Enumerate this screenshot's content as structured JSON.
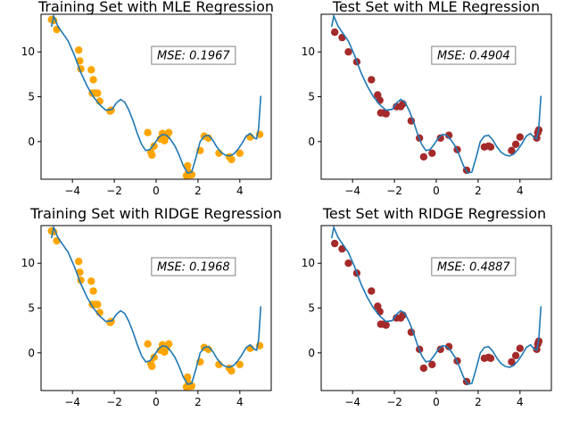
{
  "colors": {
    "background": "#ffffff",
    "curve": "#1f77b4",
    "train_points": "#ffa500",
    "test_points": "#a52a2a",
    "mse_box_border": "#808080"
  },
  "chart_data": [
    {
      "type": "scatter",
      "title": "Training Set with MLE Regression",
      "annotation": "MSE: 0.1967",
      "xlim": [
        -5.5,
        5.5
      ],
      "ylim": [
        -4.2,
        14.2
      ],
      "xticks": [
        -4,
        -2,
        0,
        2,
        4
      ],
      "yticks": [
        0,
        5,
        10
      ],
      "grid": false,
      "points": {
        "x": [
          -5.0,
          -4.9,
          -4.75,
          -3.7,
          -3.65,
          -3.6,
          -3.1,
          -3.05,
          -3.0,
          -2.9,
          -2.8,
          -2.7,
          -2.2,
          -2.15,
          -0.4,
          -0.25,
          -0.2,
          -0.1,
          0.2,
          0.3,
          0.4,
          0.5,
          0.6,
          1.45,
          1.5,
          1.55,
          1.6,
          1.7,
          2.1,
          2.3,
          2.5,
          3.0,
          3.5,
          3.6,
          4.0,
          4.5,
          4.95
        ],
        "y": [
          13.6,
          13.5,
          12.5,
          10.2,
          9.0,
          8.1,
          8.0,
          5.4,
          6.9,
          5.4,
          5.4,
          4.5,
          3.4,
          3.5,
          1.0,
          -1.2,
          -1.5,
          -0.5,
          0.3,
          0.9,
          0.1,
          0.6,
          1.0,
          -3.8,
          -2.7,
          -3.4,
          -3.7,
          -3.7,
          -1.0,
          0.6,
          0.4,
          -1.3,
          -1.7,
          -2.0,
          -1.3,
          0.5,
          0.8
        ]
      },
      "curve": {
        "x": [
          -5.0,
          -4.9,
          -4.7,
          -4.5,
          -4.2,
          -3.9,
          -3.6,
          -3.3,
          -3.0,
          -2.7,
          -2.4,
          -2.1,
          -1.9,
          -1.7,
          -1.5,
          -1.3,
          -1.1,
          -0.9,
          -0.7,
          -0.5,
          -0.3,
          -0.1,
          0.1,
          0.3,
          0.5,
          0.7,
          0.9,
          1.1,
          1.3,
          1.5,
          1.7,
          1.9,
          2.1,
          2.3,
          2.5,
          2.7,
          2.9,
          3.1,
          3.3,
          3.5,
          3.7,
          3.9,
          4.1,
          4.3,
          4.5,
          4.7,
          4.8,
          4.9,
          5.0
        ],
        "y": [
          12.8,
          14.0,
          12.9,
          12.2,
          11.2,
          9.6,
          7.7,
          6.2,
          5.0,
          4.1,
          3.5,
          3.6,
          4.3,
          4.7,
          4.4,
          3.5,
          2.3,
          0.9,
          -0.3,
          -1.0,
          -0.9,
          -0.3,
          0.4,
          0.8,
          0.7,
          0.2,
          -0.5,
          -1.5,
          -2.7,
          -3.5,
          -3.4,
          -1.8,
          0.0,
          0.6,
          0.7,
          0.2,
          -0.6,
          -1.2,
          -1.5,
          -1.6,
          -1.4,
          -0.9,
          -0.2,
          0.6,
          0.9,
          0.4,
          0.3,
          1.5,
          5.1
        ]
      }
    },
    {
      "type": "scatter",
      "title": "Test Set with MLE Regression",
      "annotation": "MSE: 0.4904",
      "xlim": [
        -5.5,
        5.5
      ],
      "ylim": [
        -4.2,
        14.2
      ],
      "xticks": [
        -4,
        -2,
        0,
        2,
        4
      ],
      "yticks": [
        0,
        5,
        10
      ],
      "grid": false,
      "points": {
        "x": [
          -4.85,
          -4.5,
          -4.2,
          -3.8,
          -3.1,
          -2.8,
          -2.7,
          -2.65,
          -2.5,
          -2.4,
          -1.9,
          -1.7,
          -1.6,
          -1.2,
          -0.8,
          -0.6,
          -0.2,
          0.2,
          0.6,
          1.0,
          1.45,
          2.3,
          2.5,
          2.6,
          3.6,
          3.8,
          4.0,
          4.8,
          4.85,
          4.9
        ],
        "y": [
          12.2,
          11.6,
          10.0,
          8.9,
          6.9,
          5.2,
          4.6,
          3.2,
          3.2,
          3.1,
          3.9,
          3.9,
          4.2,
          2.3,
          0.4,
          -1.7,
          -1.3,
          0.4,
          0.7,
          -0.9,
          -3.2,
          -0.6,
          -0.5,
          -0.6,
          -1.0,
          -0.3,
          0.5,
          0.4,
          1.0,
          1.3
        ]
      },
      "curve": {
        "x": [
          -5.0,
          -4.9,
          -4.7,
          -4.5,
          -4.2,
          -3.9,
          -3.6,
          -3.3,
          -3.0,
          -2.7,
          -2.4,
          -2.1,
          -1.9,
          -1.7,
          -1.5,
          -1.3,
          -1.1,
          -0.9,
          -0.7,
          -0.5,
          -0.3,
          -0.1,
          0.1,
          0.3,
          0.5,
          0.7,
          0.9,
          1.1,
          1.3,
          1.5,
          1.7,
          1.9,
          2.1,
          2.3,
          2.5,
          2.7,
          2.9,
          3.1,
          3.3,
          3.5,
          3.7,
          3.9,
          4.1,
          4.3,
          4.5,
          4.7,
          4.8,
          4.9,
          5.0
        ],
        "y": [
          12.8,
          14.0,
          12.9,
          12.2,
          11.2,
          9.6,
          7.7,
          6.2,
          5.0,
          4.1,
          3.5,
          3.6,
          4.3,
          4.7,
          4.4,
          3.5,
          2.3,
          0.9,
          -0.3,
          -1.0,
          -0.9,
          -0.3,
          0.4,
          0.8,
          0.7,
          0.2,
          -0.5,
          -1.5,
          -2.7,
          -3.5,
          -3.4,
          -1.8,
          0.0,
          0.6,
          0.7,
          0.2,
          -0.6,
          -1.2,
          -1.5,
          -1.6,
          -1.4,
          -0.9,
          -0.2,
          0.6,
          0.9,
          0.4,
          0.3,
          1.5,
          5.1
        ]
      }
    },
    {
      "type": "scatter",
      "title": "Training Set with RIDGE Regression",
      "annotation": "MSE: 0.1968",
      "xlim": [
        -5.5,
        5.5
      ],
      "ylim": [
        -4.2,
        14.2
      ],
      "xticks": [
        -4,
        -2,
        0,
        2,
        4
      ],
      "yticks": [
        0,
        5,
        10
      ],
      "grid": false,
      "points": {
        "x": [
          -5.0,
          -4.9,
          -4.75,
          -3.7,
          -3.65,
          -3.6,
          -3.1,
          -3.05,
          -3.0,
          -2.9,
          -2.8,
          -2.7,
          -2.2,
          -2.15,
          -0.4,
          -0.25,
          -0.2,
          -0.1,
          0.2,
          0.3,
          0.4,
          0.5,
          0.6,
          1.45,
          1.5,
          1.55,
          1.6,
          1.7,
          2.1,
          2.3,
          2.5,
          3.0,
          3.5,
          3.6,
          4.0,
          4.5,
          4.95
        ],
        "y": [
          13.6,
          13.5,
          12.5,
          10.2,
          9.0,
          8.1,
          8.0,
          5.4,
          6.9,
          5.4,
          5.4,
          4.5,
          3.4,
          3.5,
          1.0,
          -1.2,
          -1.5,
          -0.5,
          0.3,
          0.9,
          0.1,
          0.6,
          1.0,
          -3.8,
          -2.7,
          -3.4,
          -3.7,
          -3.7,
          -1.0,
          0.6,
          0.4,
          -1.3,
          -1.7,
          -2.0,
          -1.3,
          0.5,
          0.8
        ]
      },
      "curve": {
        "x": [
          -5.0,
          -4.9,
          -4.7,
          -4.5,
          -4.2,
          -3.9,
          -3.6,
          -3.3,
          -3.0,
          -2.7,
          -2.4,
          -2.1,
          -1.9,
          -1.7,
          -1.5,
          -1.3,
          -1.1,
          -0.9,
          -0.7,
          -0.5,
          -0.3,
          -0.1,
          0.1,
          0.3,
          0.5,
          0.7,
          0.9,
          1.1,
          1.3,
          1.5,
          1.7,
          1.9,
          2.1,
          2.3,
          2.5,
          2.7,
          2.9,
          3.1,
          3.3,
          3.5,
          3.7,
          3.9,
          4.1,
          4.3,
          4.5,
          4.7,
          4.8,
          4.9,
          5.0
        ],
        "y": [
          12.8,
          14.0,
          12.9,
          12.2,
          11.2,
          9.6,
          7.7,
          6.2,
          5.0,
          4.1,
          3.5,
          3.6,
          4.3,
          4.7,
          4.4,
          3.5,
          2.3,
          0.9,
          -0.3,
          -1.0,
          -0.9,
          -0.3,
          0.4,
          0.8,
          0.7,
          0.2,
          -0.5,
          -1.5,
          -2.7,
          -3.5,
          -3.4,
          -1.8,
          0.0,
          0.6,
          0.7,
          0.2,
          -0.6,
          -1.2,
          -1.5,
          -1.6,
          -1.4,
          -0.9,
          -0.2,
          0.6,
          0.9,
          0.4,
          0.3,
          1.5,
          5.2
        ]
      }
    },
    {
      "type": "scatter",
      "title": "Test Set with RIDGE Regression",
      "annotation": "MSE: 0.4887",
      "xlim": [
        -5.5,
        5.5
      ],
      "ylim": [
        -4.2,
        14.2
      ],
      "xticks": [
        -4,
        -2,
        0,
        2,
        4
      ],
      "yticks": [
        0,
        5,
        10
      ],
      "grid": false,
      "points": {
        "x": [
          -4.85,
          -4.5,
          -4.2,
          -3.8,
          -3.1,
          -2.8,
          -2.7,
          -2.65,
          -2.5,
          -2.4,
          -1.9,
          -1.7,
          -1.6,
          -1.2,
          -0.8,
          -0.6,
          -0.2,
          0.2,
          0.6,
          1.0,
          1.45,
          2.3,
          2.5,
          2.6,
          3.6,
          3.8,
          4.0,
          4.8,
          4.85,
          4.9
        ],
        "y": [
          12.2,
          11.6,
          10.0,
          8.9,
          6.9,
          5.2,
          4.6,
          3.2,
          3.2,
          3.1,
          3.9,
          3.9,
          4.2,
          2.3,
          0.4,
          -1.7,
          -1.3,
          0.4,
          0.7,
          -0.9,
          -3.2,
          -0.6,
          -0.5,
          -0.6,
          -1.0,
          -0.3,
          0.5,
          0.4,
          1.0,
          1.3
        ]
      },
      "curve": {
        "x": [
          -5.0,
          -4.9,
          -4.7,
          -4.5,
          -4.2,
          -3.9,
          -3.6,
          -3.3,
          -3.0,
          -2.7,
          -2.4,
          -2.1,
          -1.9,
          -1.7,
          -1.5,
          -1.3,
          -1.1,
          -0.9,
          -0.7,
          -0.5,
          -0.3,
          -0.1,
          0.1,
          0.3,
          0.5,
          0.7,
          0.9,
          1.1,
          1.3,
          1.5,
          1.7,
          1.9,
          2.1,
          2.3,
          2.5,
          2.7,
          2.9,
          3.1,
          3.3,
          3.5,
          3.7,
          3.9,
          4.1,
          4.3,
          4.5,
          4.7,
          4.8,
          4.9,
          5.0
        ],
        "y": [
          12.8,
          14.0,
          12.9,
          12.2,
          11.2,
          9.6,
          7.7,
          6.2,
          5.0,
          4.1,
          3.5,
          3.6,
          4.3,
          4.7,
          4.4,
          3.5,
          2.3,
          0.9,
          -0.3,
          -1.0,
          -0.9,
          -0.3,
          0.4,
          0.8,
          0.7,
          0.2,
          -0.5,
          -1.5,
          -2.7,
          -3.5,
          -3.4,
          -1.8,
          0.0,
          0.6,
          0.7,
          0.2,
          -0.6,
          -1.2,
          -1.5,
          -1.6,
          -1.4,
          -0.9,
          -0.2,
          0.6,
          0.9,
          0.4,
          0.3,
          1.5,
          5.2
        ]
      }
    }
  ]
}
